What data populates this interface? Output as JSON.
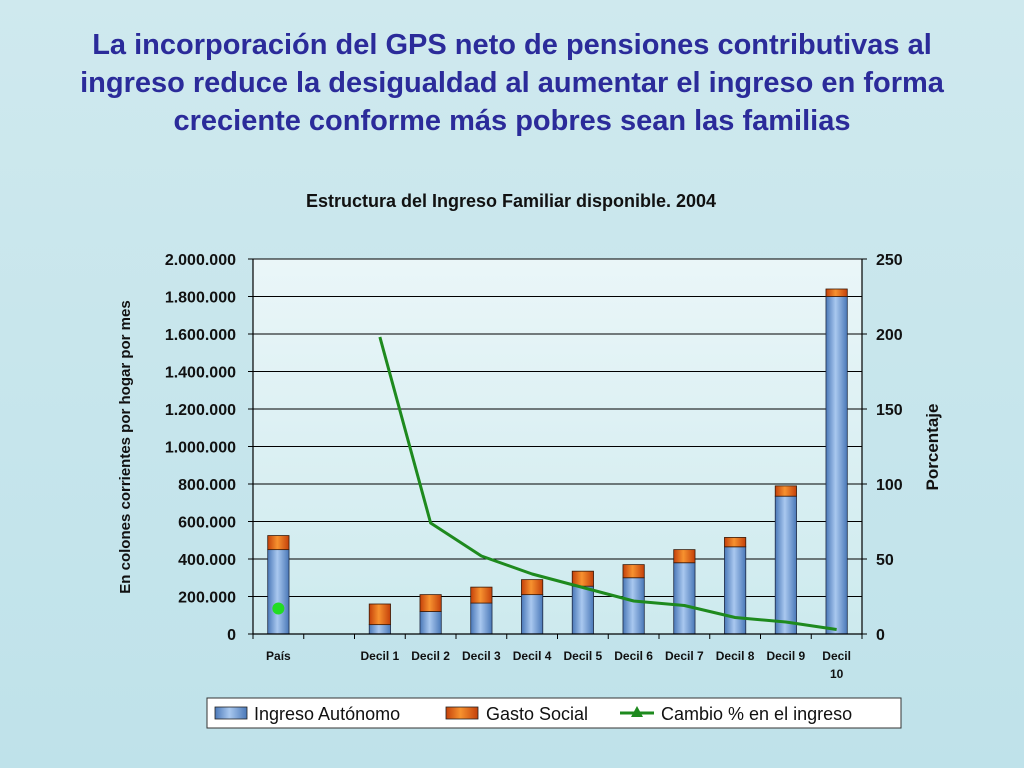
{
  "slide": {
    "title_lines": [
      "La incorporación del GPS neto de pensiones contributivas al",
      "ingreso reduce la desigualdad al aumentar el ingreso en forma",
      "creciente conforme más pobres sean las familias"
    ]
  },
  "colors": {
    "title": "#2b2b9a",
    "ingreso_autonomo": "#7ba3d6",
    "gasto_social": "#e8651b",
    "cambio": "#1e8a1e",
    "pais_marker": "#22dd22"
  },
  "chart_data": {
    "type": "bar",
    "title": "Estructura del Ingreso Familiar disponible. 2004",
    "ylabel": "En colones corrientes por hogar por mes",
    "y2label": "Porcentaje",
    "ylim": [
      0,
      2000000
    ],
    "y2lim": [
      0,
      250
    ],
    "stacked": true,
    "yticks": [
      "0",
      "200.000",
      "400.000",
      "600.000",
      "800.000",
      "1.000.000",
      "1.200.000",
      "1.400.000",
      "1.600.000",
      "1.800.000",
      "2.000.000"
    ],
    "y2ticks": [
      "0",
      "50",
      "100",
      "150",
      "200",
      "250"
    ],
    "categories": [
      [
        "País"
      ],
      [
        ""
      ],
      [
        "Decil 1"
      ],
      [
        "Decil 2"
      ],
      [
        "Decil 3"
      ],
      [
        "Decil 4"
      ],
      [
        "Decil 5"
      ],
      [
        "Decil 6"
      ],
      [
        "Decil 7"
      ],
      [
        "Decil 8"
      ],
      [
        "Decil 9"
      ],
      [
        "Decil",
        "10"
      ]
    ],
    "series": [
      {
        "name": "Ingreso Autónomo",
        "type": "bar",
        "values": [
          450000,
          null,
          50000,
          120000,
          165000,
          210000,
          255000,
          300000,
          380000,
          465000,
          735000,
          1800000
        ]
      },
      {
        "name": "Gasto Social",
        "type": "bar",
        "values": [
          75000,
          null,
          110000,
          90000,
          85000,
          80000,
          80000,
          70000,
          70000,
          50000,
          55000,
          40000
        ]
      },
      {
        "name": "Cambio % en el ingreso",
        "type": "line",
        "axis": "right",
        "values": [
          17,
          null,
          198,
          74,
          52,
          40,
          31,
          22,
          19,
          11,
          8,
          3
        ]
      }
    ],
    "legend_position": "bottom",
    "grid": true
  }
}
